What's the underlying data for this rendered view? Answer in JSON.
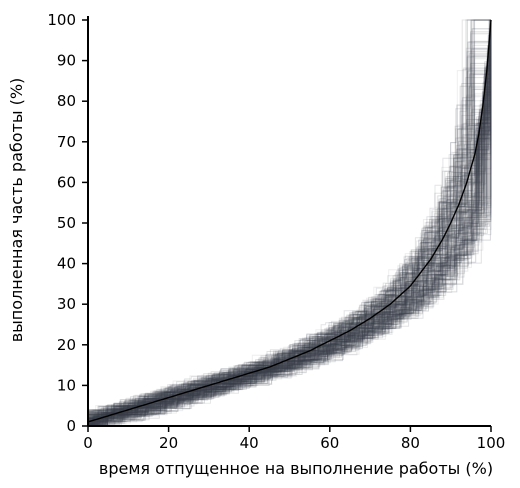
{
  "chart_data": {
    "type": "line",
    "title": "",
    "xlabel": "время  отпущенное на выполнение  работы (%)",
    "ylabel": "выполненная  часть  работы (%)",
    "xlim": [
      0,
      100
    ],
    "ylim": [
      0,
      100
    ],
    "x_ticks": [
      0,
      20,
      40,
      60,
      80,
      100
    ],
    "y_ticks": [
      0,
      10,
      20,
      30,
      40,
      50,
      60,
      70,
      80,
      90,
      100
    ],
    "grid": false,
    "legend": "none",
    "colors": {
      "axis": "#000000",
      "mean_line": "#000000",
      "runs": "#3a3f4a"
    },
    "series": [
      {
        "role": "mean",
        "x": [
          0,
          5,
          10,
          15,
          20,
          25,
          30,
          35,
          40,
          45,
          50,
          55,
          60,
          65,
          70,
          75,
          80,
          85,
          88,
          90,
          92,
          94,
          96,
          97,
          98,
          99,
          100
        ],
        "values": [
          1,
          2.5,
          4,
          5.5,
          7,
          8.5,
          10,
          11.5,
          13,
          14.5,
          16.5,
          18.5,
          21,
          23.5,
          26.5,
          30,
          34.5,
          41,
          46,
          50,
          54.5,
          60,
          67,
          72,
          79,
          88,
          100
        ]
      }
    ],
    "simulation": {
      "runs": 260
    }
  }
}
